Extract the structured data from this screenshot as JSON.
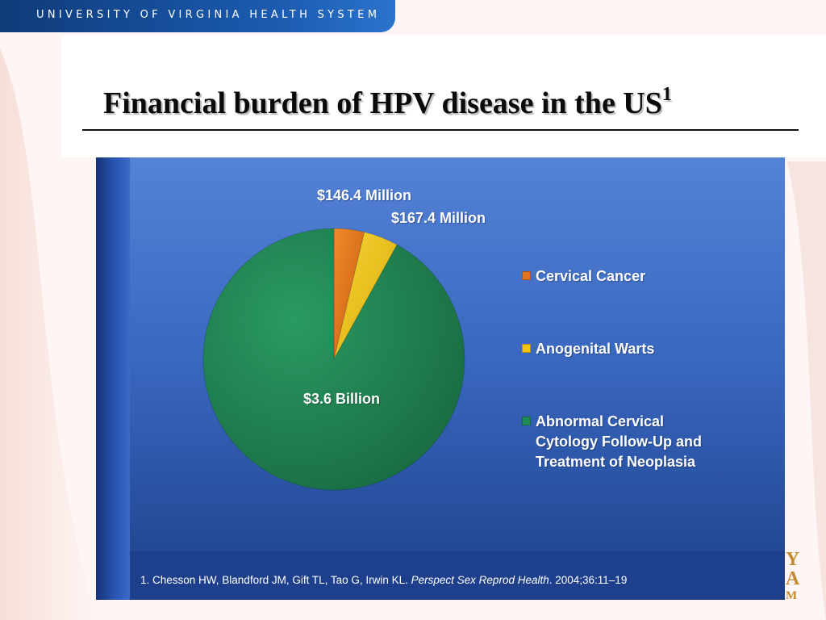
{
  "header": {
    "org_name": "UNIVERSITY OF VIRGINIA HEALTH SYSTEM"
  },
  "slide": {
    "title": "Financial burden of HPV disease in the US",
    "title_superscript": "1"
  },
  "colors": {
    "cervical_cancer": "#e0731f",
    "anogenital_warts": "#f0c414",
    "abnormal_cytology": "#1f8a55",
    "panel_blue": "#3a68c0",
    "header_blue": "#1b5bb0"
  },
  "chart_data": {
    "type": "pie",
    "title": "",
    "start_angle_deg": 0,
    "direction": "clockwise",
    "slices": [
      {
        "name": "Cervical Cancer",
        "value": 146.4,
        "unit": "Million USD",
        "label": "$146.4 Million"
      },
      {
        "name": "Anogenital Warts",
        "value": 167.4,
        "unit": "Million USD",
        "label": "$167.4 Million"
      },
      {
        "name": "Abnormal Cervical Cytology Follow-Up and Treatment of Neoplasia",
        "value": 3600,
        "unit": "Million USD",
        "label": "$3.6 Billion"
      }
    ],
    "legend": {
      "placement": "right",
      "entries": [
        "Cervical Cancer",
        "Anogenital Warts",
        "Abnormal Cervical Cytology Follow-Up and Treatment of Neoplasia"
      ]
    }
  },
  "citation": {
    "prefix": "1. Chesson HW, Blandford JM, Gift TL, Tao G, Irwin KL. ",
    "journal": "Perspect Sex Reprod Health",
    "suffix": ". 2004;36:11–19"
  },
  "logo_fragment": {
    "line1": "Y",
    "line2": "A",
    "line3": "M"
  }
}
